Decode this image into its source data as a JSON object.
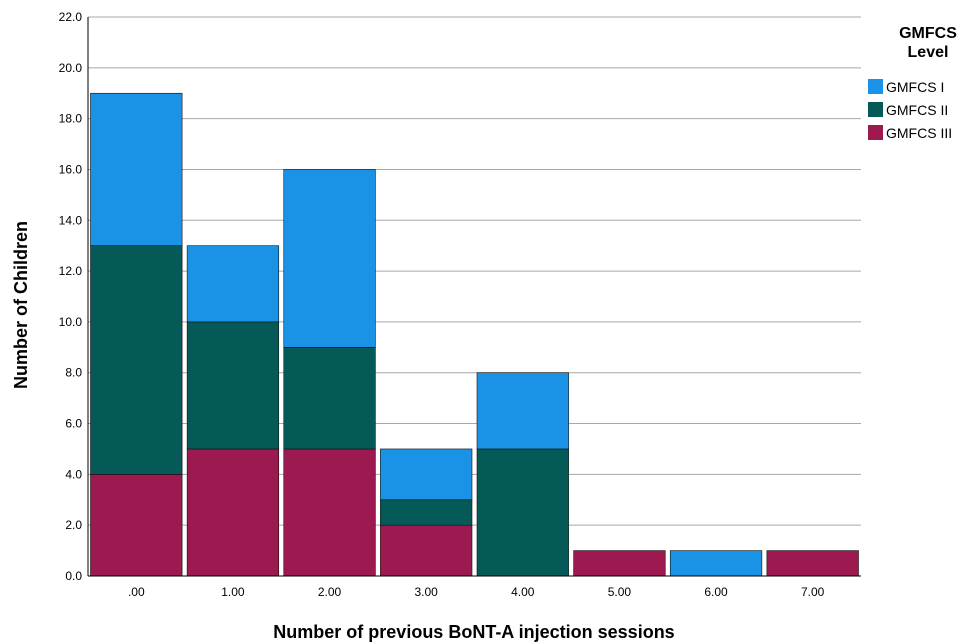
{
  "chart_data": {
    "type": "bar",
    "stacked": true,
    "categories": [
      ".00",
      "1.00",
      "2.00",
      "3.00",
      "4.00",
      "5.00",
      "6.00",
      "7.00"
    ],
    "series": [
      {
        "name": "GMFCS III",
        "color": "#9c1a4f",
        "values": [
          4,
          5,
          5,
          2,
          0,
          1,
          0,
          1
        ]
      },
      {
        "name": "GMFCS II",
        "color": "#055a58",
        "values": [
          9,
          5,
          4,
          1,
          5,
          0,
          0,
          0
        ]
      },
      {
        "name": "GMFCS I",
        "color": "#1a93e6",
        "values": [
          6,
          3,
          7,
          2,
          3,
          0,
          1,
          0
        ]
      }
    ],
    "legend_order": [
      "GMFCS I",
      "GMFCS II",
      "GMFCS III"
    ],
    "xlabel": "Number of previous BoNT-A injection sessions",
    "ylabel": "Number of Children",
    "ylim": [
      0,
      22
    ],
    "yticks": [
      "0.0",
      "2.0",
      "4.0",
      "6.0",
      "8.0",
      "10.0",
      "12.0",
      "14.0",
      "16.0",
      "18.0",
      "20.0",
      "22.0"
    ],
    "legend_title_lines": [
      "GMFCS",
      "Level"
    ],
    "legend_position": "right",
    "grid": true,
    "grid_color": "#a8a8a8"
  }
}
